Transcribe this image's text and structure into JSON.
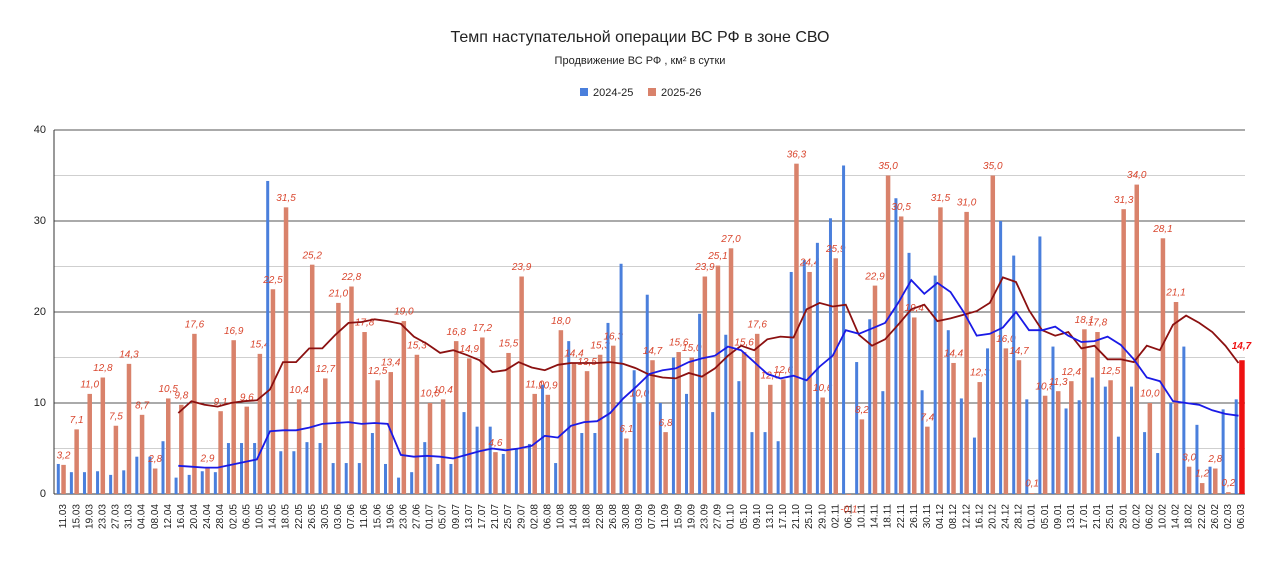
{
  "chart_data": {
    "type": "bar",
    "title": "Темп наступательной операции ВС РФ в зоне СВО",
    "subtitle": "Продвижение ВС РФ , км² в сутки",
    "categories": [
      "11.03",
      "15.03",
      "19.03",
      "23.03",
      "27.03",
      "31.03",
      "04.04",
      "08.04",
      "12.04",
      "16.04",
      "20.04",
      "24.04",
      "28.04",
      "02.05",
      "06.05",
      "10.05",
      "14.05",
      "18.05",
      "22.05",
      "26.05",
      "30.05",
      "03.06",
      "07.06",
      "11.06",
      "15.06",
      "19.06",
      "23.06",
      "27.06",
      "01.07",
      "05.07",
      "09.07",
      "13.07",
      "17.07",
      "21.07",
      "25.07",
      "29.07",
      "02.08",
      "06.08",
      "10.08",
      "14.08",
      "18.08",
      "22.08",
      "26.08",
      "30.08",
      "03.09",
      "07.09",
      "11.09",
      "15.09",
      "19.09",
      "23.09",
      "27.09",
      "01.10",
      "05.10",
      "09.10",
      "13.10",
      "17.10",
      "21.10",
      "25.10",
      "29.10",
      "02.11",
      "06.11",
      "10.11",
      "14.11",
      "18.11",
      "22.11",
      "26.11",
      "30.11",
      "04.12",
      "08.12",
      "12.12",
      "16.12",
      "20.12",
      "24.12",
      "28.12",
      "01.01",
      "05.01",
      "09.01",
      "13.01",
      "17.01",
      "21.01",
      "25.01",
      "29.01",
      "02.02",
      "06.02",
      "10.02",
      "14.02",
      "18.02",
      "22.02",
      "26.02",
      "02.03",
      "06.03"
    ],
    "series": [
      {
        "name": "2024-25",
        "color": "#4a7fdc",
        "values": [
          3.3,
          2.4,
          2.4,
          2.5,
          2.1,
          2.6,
          4.1,
          4.1,
          5.8,
          1.8,
          2.1,
          2.5,
          2.4,
          5.6,
          5.6,
          5.6,
          34.4,
          4.7,
          4.7,
          5.7,
          5.6,
          3.4,
          3.4,
          3.4,
          6.7,
          3.3,
          1.8,
          2.4,
          5.7,
          3.3,
          3.3,
          9.0,
          7.4,
          7.4,
          4.4,
          5.0,
          5.5,
          12.0,
          3.4,
          16.8,
          6.7,
          6.7,
          18.8,
          25.3,
          13.6,
          21.9,
          10.0,
          15.0,
          11.0,
          19.8,
          9.0,
          17.5,
          12.4,
          6.8,
          6.8,
          5.8,
          24.4,
          25.7,
          27.6,
          30.3,
          36.1,
          14.5,
          19.2,
          11.3,
          32.5,
          26.5,
          11.4,
          24.0,
          18.0,
          10.5,
          6.2,
          16.0,
          30.0,
          26.2,
          10.4,
          28.3,
          16.2,
          9.4,
          10.3,
          12.8,
          11.8,
          6.3,
          11.8,
          6.8,
          4.5,
          10.0,
          16.2,
          7.6,
          3.0,
          9.3,
          10.4
        ]
      },
      {
        "name": "2025-26",
        "color": "#d9826b",
        "highlight_color": "#ee1111",
        "values": [
          3.2,
          7.1,
          11.0,
          12.8,
          7.5,
          14.3,
          8.7,
          2.8,
          10.5,
          9.8,
          17.6,
          2.9,
          9.1,
          16.9,
          9.6,
          15.4,
          22.5,
          31.5,
          10.4,
          25.2,
          12.7,
          21.0,
          22.8,
          17.8,
          12.5,
          13.4,
          19.0,
          15.3,
          10.0,
          10.4,
          16.8,
          14.9,
          17.2,
          4.6,
          15.5,
          23.9,
          11.0,
          10.9,
          18.0,
          14.4,
          13.5,
          15.3,
          16.3,
          6.1,
          10.0,
          14.7,
          6.8,
          15.6,
          15.0,
          23.9,
          25.1,
          27.0,
          15.6,
          17.6,
          12.0,
          12.6,
          36.3,
          24.4,
          10.6,
          25.9,
          -0.1,
          8.2,
          22.9,
          35.0,
          30.5,
          19.4,
          7.4,
          31.5,
          14.4,
          31.0,
          12.3,
          35.0,
          16.0,
          14.7,
          0.1,
          10.8,
          11.3,
          12.4,
          18.1,
          17.8,
          12.5,
          31.3,
          34.0,
          10.0,
          28.1,
          21.1,
          3.0,
          1.2,
          2.8,
          0.2,
          14.7
        ],
        "value_labels": [
          "3,2",
          "7,1",
          "11,0",
          "12,8",
          "7,5",
          "14,3",
          "8,7",
          "2,8",
          "10,5",
          "9,8",
          "17,6",
          "2,9",
          "9,1",
          "16,9",
          "9,6",
          "15,4",
          "22,5",
          "31,5",
          "10,4",
          "25,2",
          "12,7",
          "21,0",
          "22,8",
          "17,8",
          "12,5",
          "13,4",
          "19,0",
          "15,3",
          "10,0",
          "10,4",
          "16,8",
          "14,9",
          "17,2",
          "4,6",
          "15,5",
          "23,9",
          "11,0",
          "10,9",
          "18,0",
          "14,4",
          "13,5",
          "15,3",
          "16,3",
          "6,1",
          "10,0",
          "14,7",
          "6,8",
          "15,6",
          "15,0",
          "23,9",
          "25,1",
          "27,0",
          "15,6",
          "17,6",
          "12,0",
          "12,6",
          "36,3",
          "24,4",
          "10,6",
          "25,9",
          "-0,1",
          "8,2",
          "22,9",
          "35,0",
          "30,5",
          "19,4",
          "7,4",
          "31,5",
          "14,4",
          "31,0",
          "12,3",
          "35,0",
          "16,0",
          "14,7",
          "0,1",
          "10,8",
          "11,3",
          "12,4",
          "18,1",
          "17,8",
          "12,5",
          "31,3",
          "34,0",
          "10,0",
          "28,1",
          "21,1",
          "3,0",
          "1,2",
          "2,8",
          "0,2",
          "14,7"
        ]
      }
    ],
    "trend_lines": [
      {
        "color": "#8b1010",
        "values": [
          null,
          null,
          null,
          null,
          null,
          null,
          null,
          null,
          null,
          8.9,
          10.2,
          9.8,
          9.6,
          10.0,
          10.2,
          10.3,
          11.5,
          14.5,
          14.5,
          16.0,
          16.0,
          17.5,
          18.8,
          18.9,
          19.2,
          19.0,
          18.7,
          17.3,
          16.5,
          15.5,
          15.8,
          15.3,
          14.7,
          13.4,
          13.6,
          14.5,
          13.9,
          13.6,
          14.2,
          14.4,
          14.4,
          14.4,
          14.5,
          14.3,
          13.8,
          13.1,
          12.8,
          12.7,
          13.3,
          12.9,
          13.8,
          15.2,
          16.3,
          15.8,
          17.0,
          17.3,
          17.2,
          20.3,
          21.0,
          20.6,
          20.8,
          17.5,
          16.3,
          17.0,
          18.6,
          20.3,
          20.8,
          19.0,
          19.3,
          19.7,
          20.1,
          21.0,
          23.8,
          23.3,
          20.2,
          18.0,
          17.4,
          17.8,
          16.0,
          16.3,
          14.8,
          14.8,
          14.5,
          16.3,
          15.8,
          18.6,
          19.6,
          18.8,
          17.8,
          16.3,
          14.4
        ]
      },
      {
        "color": "#1a1ae6",
        "values": [
          null,
          null,
          null,
          null,
          null,
          null,
          null,
          null,
          null,
          3.1,
          3.0,
          2.9,
          2.9,
          3.2,
          3.5,
          3.8,
          6.9,
          7.0,
          7.0,
          7.3,
          7.7,
          7.8,
          7.9,
          7.7,
          7.8,
          7.7,
          4.3,
          4.1,
          4.2,
          4.1,
          3.9,
          4.3,
          4.7,
          5.0,
          4.8,
          5.0,
          5.3,
          6.4,
          6.2,
          7.5,
          7.9,
          8.0,
          8.9,
          10.5,
          11.8,
          13.2,
          13.6,
          13.8,
          14.5,
          14.9,
          15.2,
          16.2,
          15.8,
          14.5,
          13.2,
          12.7,
          13.0,
          12.5,
          14.0,
          15.2,
          18.0,
          17.6,
          18.2,
          18.8,
          21.0,
          23.5,
          22.0,
          23.2,
          22.2,
          20.0,
          17.4,
          17.6,
          18.3,
          20.0,
          18.0,
          18.0,
          18.4,
          17.4,
          16.7,
          16.8,
          17.3,
          16.4,
          14.8,
          12.8,
          12.4,
          10.2,
          10.0,
          9.8,
          9.2,
          8.8,
          8.6
        ]
      }
    ],
    "ylim": [
      0,
      40
    ],
    "yticks": [
      0,
      10,
      20,
      30,
      40
    ],
    "minor_yticks": [
      5,
      15,
      25,
      35
    ],
    "grid": true,
    "legend": "top"
  }
}
